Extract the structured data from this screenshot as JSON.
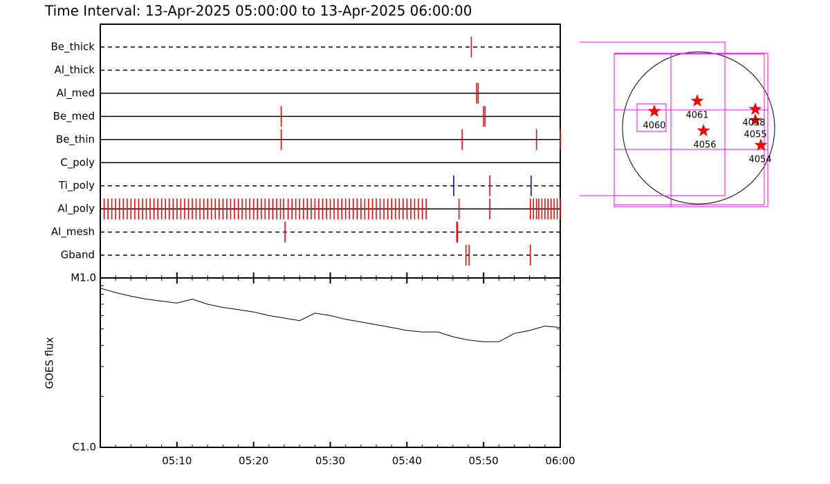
{
  "chart_data": [
    {
      "type": "timeline",
      "title": "Time Interval: 13-Apr-2025 05:00:00 to 13-Apr-2025 06:00:00",
      "xlim": [
        0,
        60
      ],
      "rows": [
        {
          "name": "Be_thick",
          "line": "dashed",
          "events": [
            {
              "t": 48.4,
              "color": "#ff0000"
            }
          ]
        },
        {
          "name": "Al_thick",
          "line": "dashed",
          "events": []
        },
        {
          "name": "Al_med",
          "line": "solid",
          "events": [
            {
              "t": 49.1,
              "color": "#ff0000"
            },
            {
              "t": 49.3,
              "color": "#ff0000"
            }
          ]
        },
        {
          "name": "Be_med",
          "line": "solid",
          "events": [
            {
              "t": 23.6,
              "color": "#ff0000"
            },
            {
              "t": 50.0,
              "color": "#ff0000"
            },
            {
              "t": 50.2,
              "color": "#ff0000"
            }
          ]
        },
        {
          "name": "Be_thin",
          "line": "solid",
          "events": [
            {
              "t": 23.6,
              "color": "#ff0000"
            },
            {
              "t": 47.2,
              "color": "#ff0000"
            },
            {
              "t": 56.9,
              "color": "#ff0000"
            },
            {
              "t": 60,
              "color": "#ff0000"
            }
          ]
        },
        {
          "name": "C_poly",
          "line": "solid",
          "events": []
        },
        {
          "name": "Ti_poly",
          "line": "dashed",
          "events": [
            {
              "t": 46.1,
              "color": "#0000ff"
            },
            {
              "t": 50.8,
              "color": "#ff0000"
            },
            {
              "t": 56.2,
              "color": "#0000ff"
            }
          ]
        },
        {
          "name": "Al_poly",
          "line": "solid",
          "events": [
            {
              "t": 0.5,
              "color": "#ff0000"
            },
            {
              "t": 1,
              "color": "#ff0000"
            },
            {
              "t": 1.5,
              "color": "#ff0000"
            },
            {
              "t": 2,
              "color": "#ff0000"
            },
            {
              "t": 2.5,
              "color": "#ff0000"
            },
            {
              "t": 3,
              "color": "#ff0000"
            },
            {
              "t": 3.5,
              "color": "#ff0000"
            },
            {
              "t": 4,
              "color": "#ff0000"
            },
            {
              "t": 4.5,
              "color": "#ff0000"
            },
            {
              "t": 5,
              "color": "#ff0000"
            },
            {
              "t": 5.5,
              "color": "#ff0000"
            },
            {
              "t": 6,
              "color": "#ff0000"
            },
            {
              "t": 6.5,
              "color": "#ff0000"
            },
            {
              "t": 7,
              "color": "#ff0000"
            },
            {
              "t": 7.5,
              "color": "#ff0000"
            },
            {
              "t": 8,
              "color": "#ff0000"
            },
            {
              "t": 8.5,
              "color": "#ff0000"
            },
            {
              "t": 9,
              "color": "#ff0000"
            },
            {
              "t": 9.5,
              "color": "#ff0000"
            },
            {
              "t": 10,
              "color": "#ff0000"
            },
            {
              "t": 10.5,
              "color": "#ff0000"
            },
            {
              "t": 11,
              "color": "#ff0000"
            },
            {
              "t": 11.5,
              "color": "#ff0000"
            },
            {
              "t": 12,
              "color": "#ff0000"
            },
            {
              "t": 12.5,
              "color": "#ff0000"
            },
            {
              "t": 13,
              "color": "#ff0000"
            },
            {
              "t": 13.5,
              "color": "#ff0000"
            },
            {
              "t": 14,
              "color": "#ff0000"
            },
            {
              "t": 14.5,
              "color": "#ff0000"
            },
            {
              "t": 15,
              "color": "#ff0000"
            },
            {
              "t": 15.5,
              "color": "#ff0000"
            },
            {
              "t": 16,
              "color": "#ff0000"
            },
            {
              "t": 16.5,
              "color": "#ff0000"
            },
            {
              "t": 17,
              "color": "#ff0000"
            },
            {
              "t": 17.5,
              "color": "#ff0000"
            },
            {
              "t": 18,
              "color": "#ff0000"
            },
            {
              "t": 18.5,
              "color": "#ff0000"
            },
            {
              "t": 19,
              "color": "#ff0000"
            },
            {
              "t": 19.5,
              "color": "#ff0000"
            },
            {
              "t": 20,
              "color": "#ff0000"
            },
            {
              "t": 20.5,
              "color": "#ff0000"
            },
            {
              "t": 21,
              "color": "#ff0000"
            },
            {
              "t": 21.5,
              "color": "#ff0000"
            },
            {
              "t": 22,
              "color": "#ff0000"
            },
            {
              "t": 22.5,
              "color": "#ff0000"
            },
            {
              "t": 23,
              "color": "#ff0000"
            },
            {
              "t": 23.5,
              "color": "#ff0000"
            },
            {
              "t": 23.9,
              "color": "#ff0000"
            },
            {
              "t": 24.5,
              "color": "#ff0000"
            },
            {
              "t": 25,
              "color": "#ff0000"
            },
            {
              "t": 25.5,
              "color": "#ff0000"
            },
            {
              "t": 26,
              "color": "#ff0000"
            },
            {
              "t": 26.5,
              "color": "#ff0000"
            },
            {
              "t": 27,
              "color": "#ff0000"
            },
            {
              "t": 27.5,
              "color": "#ff0000"
            },
            {
              "t": 28,
              "color": "#ff0000"
            },
            {
              "t": 28.5,
              "color": "#ff0000"
            },
            {
              "t": 29,
              "color": "#ff0000"
            },
            {
              "t": 29.5,
              "color": "#ff0000"
            },
            {
              "t": 30,
              "color": "#ff0000"
            },
            {
              "t": 30.5,
              "color": "#ff0000"
            },
            {
              "t": 31,
              "color": "#ff0000"
            },
            {
              "t": 31.5,
              "color": "#ff0000"
            },
            {
              "t": 32,
              "color": "#ff0000"
            },
            {
              "t": 32.5,
              "color": "#ff0000"
            },
            {
              "t": 33,
              "color": "#ff0000"
            },
            {
              "t": 33.5,
              "color": "#ff0000"
            },
            {
              "t": 34,
              "color": "#ff0000"
            },
            {
              "t": 34.5,
              "color": "#ff0000"
            },
            {
              "t": 35,
              "color": "#ff0000"
            },
            {
              "t": 35.5,
              "color": "#ff0000"
            },
            {
              "t": 36,
              "color": "#ff0000"
            },
            {
              "t": 36.5,
              "color": "#ff0000"
            },
            {
              "t": 37,
              "color": "#ff0000"
            },
            {
              "t": 37.5,
              "color": "#ff0000"
            },
            {
              "t": 38,
              "color": "#ff0000"
            },
            {
              "t": 38.5,
              "color": "#ff0000"
            },
            {
              "t": 39,
              "color": "#ff0000"
            },
            {
              "t": 39.5,
              "color": "#ff0000"
            },
            {
              "t": 40,
              "color": "#ff0000"
            },
            {
              "t": 40.5,
              "color": "#ff0000"
            },
            {
              "t": 41,
              "color": "#ff0000"
            },
            {
              "t": 41.5,
              "color": "#ff0000"
            },
            {
              "t": 42,
              "color": "#ff0000"
            },
            {
              "t": 42.5,
              "color": "#ff0000"
            },
            {
              "t": 46.8,
              "color": "#ff0000"
            },
            {
              "t": 50.8,
              "color": "#ff0000"
            },
            {
              "t": 56.1,
              "color": "#ff0000"
            },
            {
              "t": 56.5,
              "color": "#ff0000"
            },
            {
              "t": 56.9,
              "color": "#ff0000"
            },
            {
              "t": 57.2,
              "color": "#ff0000"
            },
            {
              "t": 57.6,
              "color": "#ff0000"
            },
            {
              "t": 58.0,
              "color": "#ff0000"
            },
            {
              "t": 58.4,
              "color": "#ff0000"
            },
            {
              "t": 58.8,
              "color": "#ff0000"
            },
            {
              "t": 59.2,
              "color": "#ff0000"
            },
            {
              "t": 59.6,
              "color": "#ff0000"
            },
            {
              "t": 60,
              "color": "#ff0000"
            }
          ]
        },
        {
          "name": "Al_mesh",
          "line": "dashed",
          "events": [
            {
              "t": 24.1,
              "color": "#ff0000"
            },
            {
              "t": 46.5,
              "color": "#ff0000"
            },
            {
              "t": 46.6,
              "color": "#ff0000"
            }
          ]
        },
        {
          "name": "Gband",
          "line": "dashed",
          "events": [
            {
              "t": 47.7,
              "color": "#ff0000"
            },
            {
              "t": 48.1,
              "color": "#ff0000"
            },
            {
              "t": 56.1,
              "color": "#ff0000"
            }
          ]
        }
      ]
    },
    {
      "type": "line",
      "ylabel": "GOES flux",
      "log_scale": true,
      "color": "#000000",
      "xlim": [
        0,
        60
      ],
      "xticks": [
        {
          "value": 10,
          "label": "05:10"
        },
        {
          "value": 20,
          "label": "05:20"
        },
        {
          "value": 30,
          "label": "05:30"
        },
        {
          "value": 40,
          "label": "05:40"
        },
        {
          "value": 50,
          "label": "05:50"
        },
        {
          "value": 60,
          "label": "06:00"
        }
      ],
      "xticks_minor": [
        2,
        4,
        6,
        8,
        12,
        14,
        16,
        18,
        22,
        24,
        26,
        28,
        32,
        34,
        36,
        38,
        42,
        44,
        46,
        48,
        52,
        54,
        56,
        58
      ],
      "ylim": [
        1e-06,
        1e-05
      ],
      "yticks": [
        {
          "value": 1e-06,
          "label": "C1.0"
        },
        {
          "value": 1e-05,
          "label": "M1.0"
        }
      ],
      "yticks_minor": [
        2e-06,
        3e-06,
        4e-06,
        5e-06,
        6e-06,
        7e-06,
        8e-06,
        9e-06
      ],
      "x": [
        0,
        2,
        4,
        6,
        8,
        10,
        12,
        14,
        16,
        18,
        20,
        22,
        24,
        26,
        28,
        30,
        32,
        34,
        36,
        38,
        40,
        42,
        44,
        46,
        48,
        50,
        52,
        54,
        56,
        58,
        60
      ],
      "values": [
        8.7e-06,
        8.2e-06,
        7.8e-06,
        7.5e-06,
        7.3e-06,
        7.1e-06,
        7.5e-06,
        7e-06,
        6.7e-06,
        6.5e-06,
        6.3e-06,
        6e-06,
        5.8e-06,
        5.6e-06,
        6.2e-06,
        6e-06,
        5.7e-06,
        5.5e-06,
        5.3e-06,
        5.1e-06,
        4.9e-06,
        4.8e-06,
        4.8e-06,
        4.5e-06,
        4.3e-06,
        4.2e-06,
        4.2e-06,
        4.7e-06,
        4.9e-06,
        5.2e-06,
        5.1e-06
      ]
    }
  ],
  "map": {
    "regions": [
      "4060",
      "4061",
      "4058",
      "4055",
      "4056",
      "4054"
    ]
  }
}
